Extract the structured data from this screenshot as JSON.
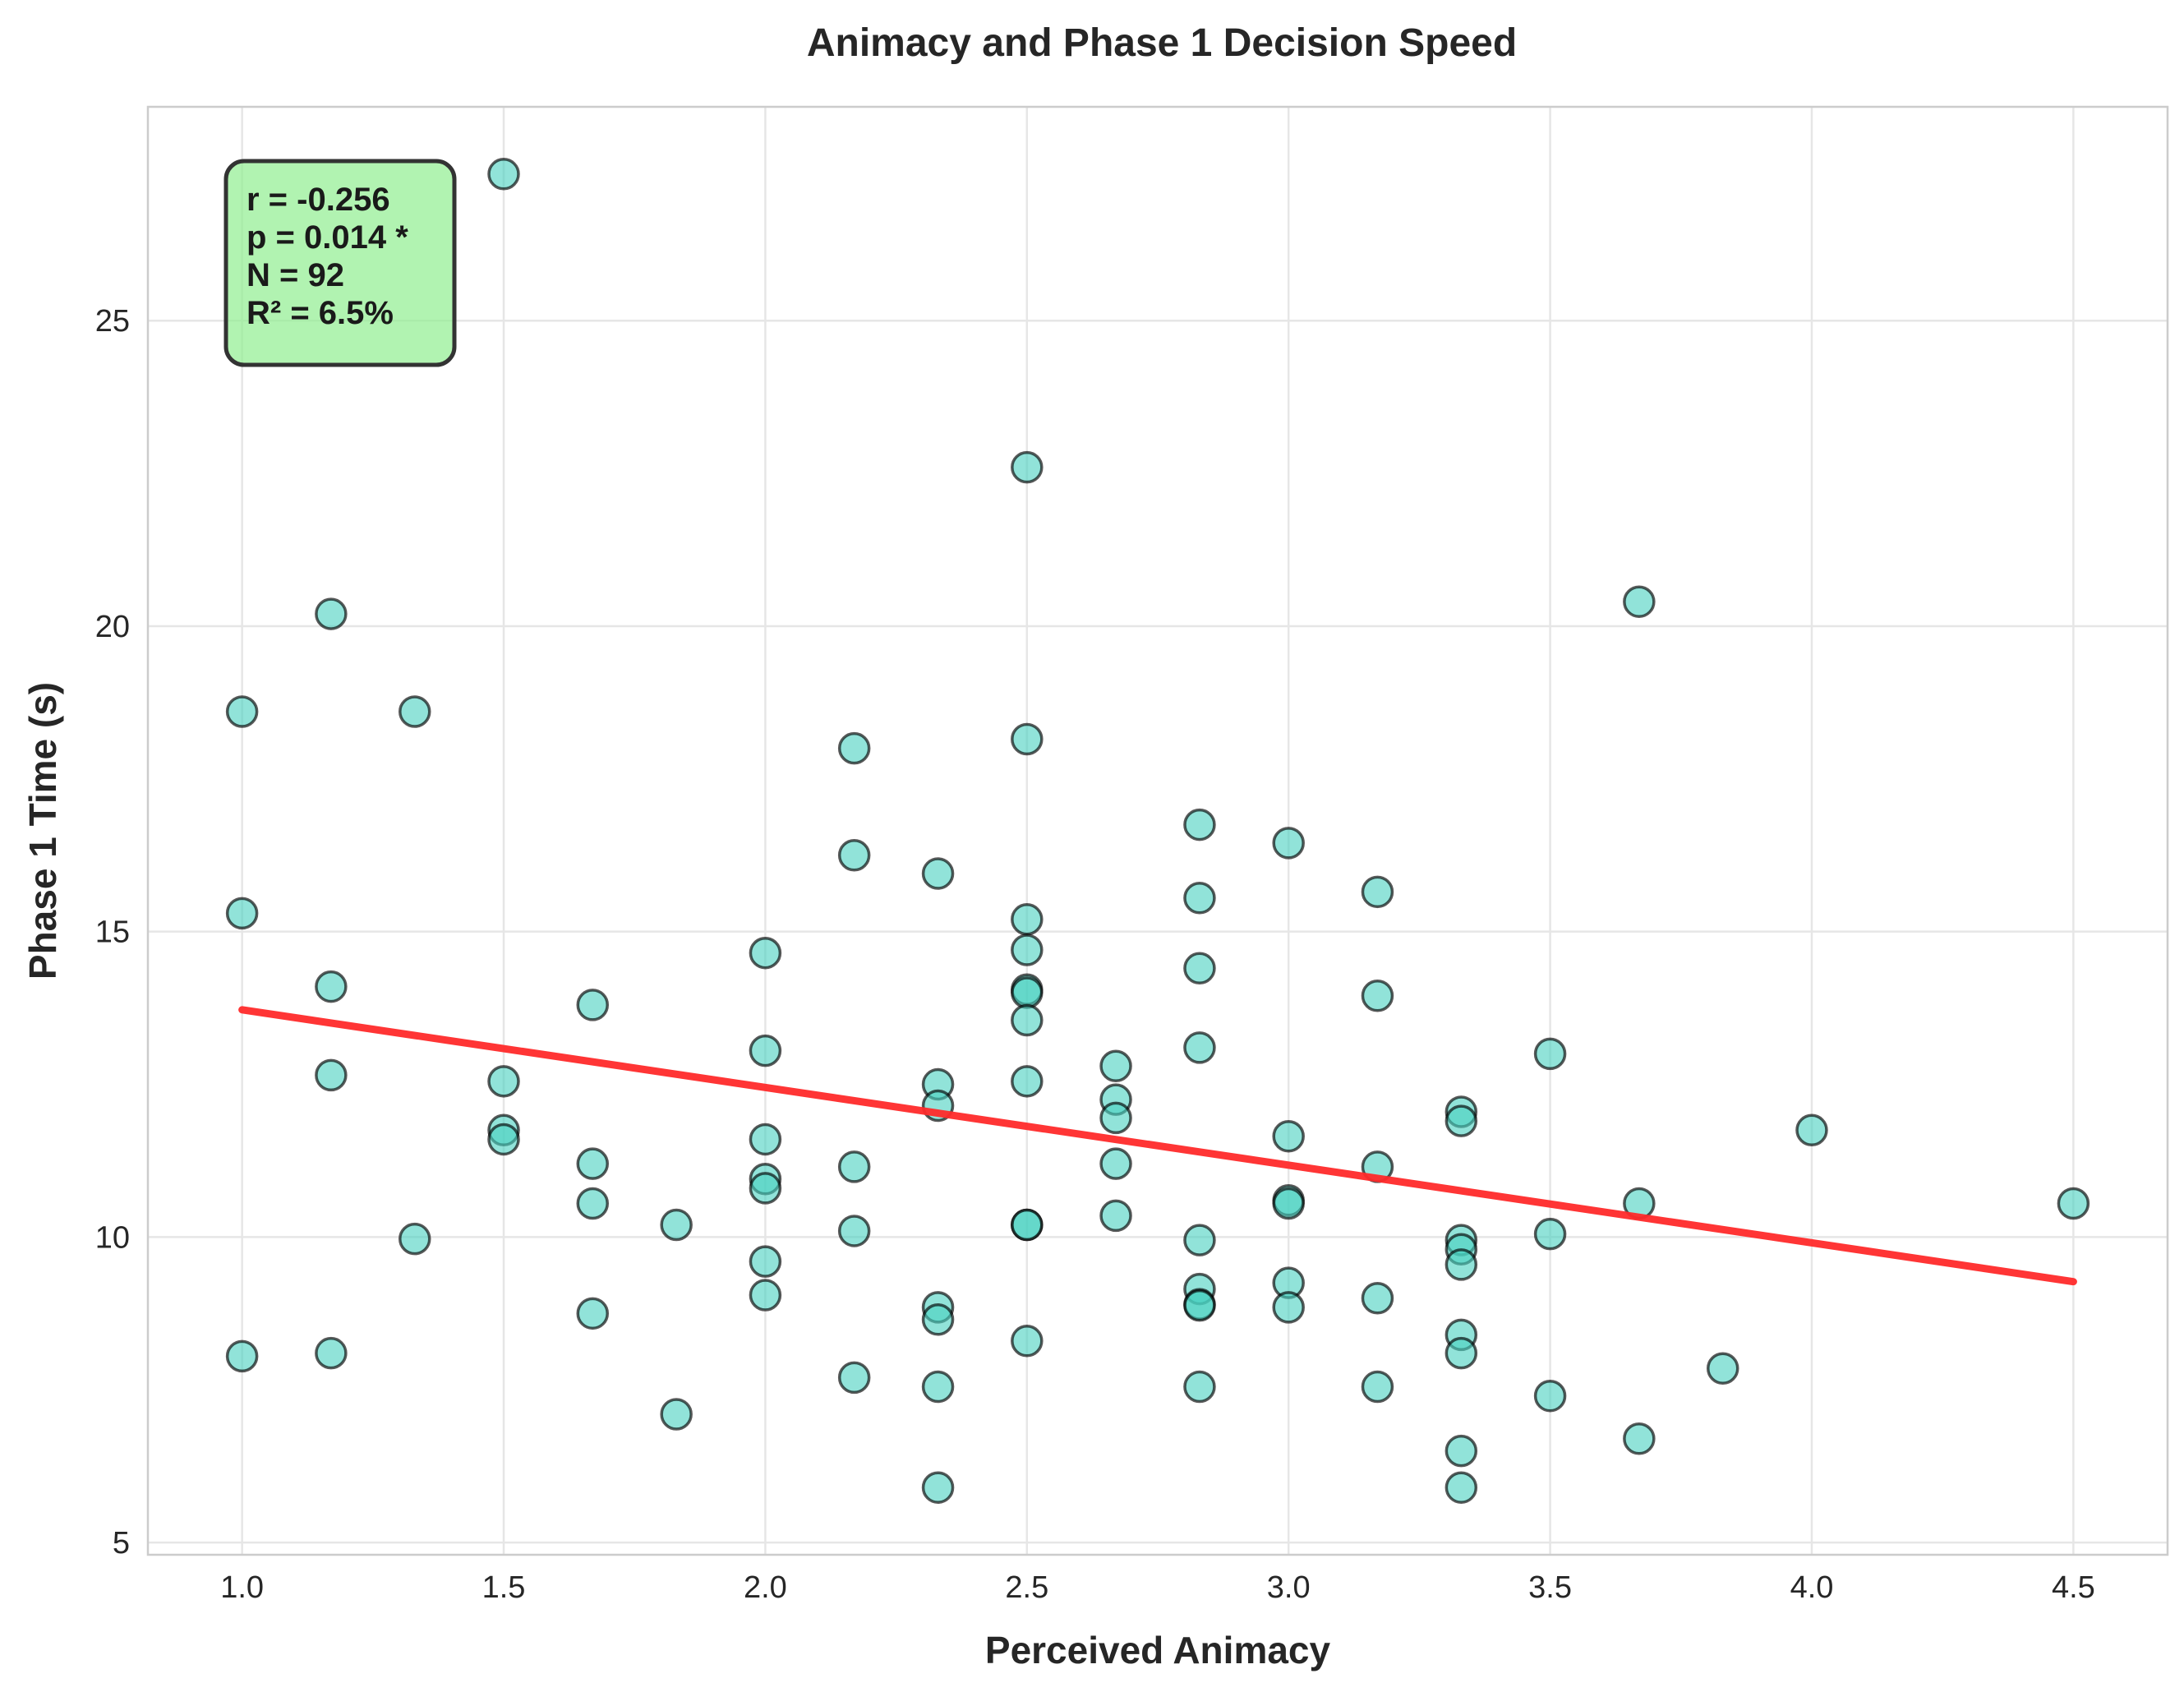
{
  "chart_data": {
    "type": "scatter",
    "title": "Animacy and Phase 1 Decision Speed",
    "xlabel": "Perceived Animacy",
    "ylabel": "Phase 1 Time (s)",
    "xlim": [
      0.82,
      4.68
    ],
    "ylim": [
      4.8,
      28.5
    ],
    "xticks": [
      "1.0",
      "1.5",
      "2.0",
      "2.5",
      "3.0",
      "3.5",
      "4.0",
      "4.5"
    ],
    "yticks": [
      "5",
      "10",
      "15",
      "20",
      "25"
    ],
    "grid": true,
    "point_color": "#48d1c0",
    "point_edge_color": "#000000",
    "line_color": "#ff2a2a",
    "stats_box_color": "#90ee90",
    "stats": [
      "r = -0.256",
      "p = 0.014 *",
      "N = 92",
      "R² = 6.5%"
    ],
    "regression": {
      "x": [
        1.0,
        4.5
      ],
      "y": [
        13.72,
        9.27
      ]
    },
    "points": [
      [
        1.0,
        18.6
      ],
      [
        1.0,
        15.3
      ],
      [
        1.0,
        8.05
      ],
      [
        1.17,
        20.2
      ],
      [
        1.17,
        14.1
      ],
      [
        1.17,
        12.65
      ],
      [
        1.17,
        8.1
      ],
      [
        1.33,
        18.6
      ],
      [
        1.33,
        9.97
      ],
      [
        1.5,
        27.4
      ],
      [
        1.5,
        12.55
      ],
      [
        1.5,
        11.75
      ],
      [
        1.5,
        11.6
      ],
      [
        1.67,
        13.8
      ],
      [
        1.67,
        11.2
      ],
      [
        1.67,
        10.55
      ],
      [
        1.67,
        8.75
      ],
      [
        1.83,
        10.2
      ],
      [
        1.83,
        7.1
      ],
      [
        2.0,
        14.65
      ],
      [
        2.0,
        13.05
      ],
      [
        2.0,
        11.6
      ],
      [
        2.0,
        10.95
      ],
      [
        2.0,
        10.8
      ],
      [
        2.0,
        9.6
      ],
      [
        2.0,
        9.05
      ],
      [
        2.17,
        18.0
      ],
      [
        2.17,
        16.25
      ],
      [
        2.17,
        11.15
      ],
      [
        2.17,
        10.1
      ],
      [
        2.17,
        7.7
      ],
      [
        2.33,
        15.95
      ],
      [
        2.33,
        12.5
      ],
      [
        2.33,
        12.15
      ],
      [
        2.33,
        8.85
      ],
      [
        2.33,
        8.65
      ],
      [
        2.33,
        7.55
      ],
      [
        2.33,
        5.9
      ],
      [
        2.5,
        22.6
      ],
      [
        2.5,
        18.15
      ],
      [
        2.5,
        15.2
      ],
      [
        2.5,
        14.7
      ],
      [
        2.5,
        14.05
      ],
      [
        2.5,
        14.0
      ],
      [
        2.5,
        13.55
      ],
      [
        2.5,
        12.55
      ],
      [
        2.5,
        10.2
      ],
      [
        2.5,
        10.2
      ],
      [
        2.5,
        8.3
      ],
      [
        2.67,
        12.8
      ],
      [
        2.67,
        12.25
      ],
      [
        2.67,
        11.95
      ],
      [
        2.67,
        11.2
      ],
      [
        2.67,
        10.35
      ],
      [
        2.83,
        16.75
      ],
      [
        2.83,
        15.55
      ],
      [
        2.83,
        14.4
      ],
      [
        2.83,
        13.1
      ],
      [
        2.83,
        9.95
      ],
      [
        2.83,
        9.15
      ],
      [
        2.83,
        8.9
      ],
      [
        2.83,
        8.88
      ],
      [
        2.83,
        7.55
      ],
      [
        3.0,
        16.45
      ],
      [
        3.0,
        11.65
      ],
      [
        3.0,
        10.6
      ],
      [
        3.0,
        10.55
      ],
      [
        3.0,
        9.25
      ],
      [
        3.0,
        8.85
      ],
      [
        3.17,
        15.65
      ],
      [
        3.17,
        13.95
      ],
      [
        3.17,
        11.15
      ],
      [
        3.17,
        9.0
      ],
      [
        3.17,
        7.55
      ],
      [
        3.33,
        12.05
      ],
      [
        3.33,
        11.9
      ],
      [
        3.33,
        9.95
      ],
      [
        3.33,
        9.8
      ],
      [
        3.33,
        9.55
      ],
      [
        3.33,
        8.4
      ],
      [
        3.33,
        8.1
      ],
      [
        3.33,
        6.5
      ],
      [
        3.33,
        5.9
      ],
      [
        3.5,
        13.0
      ],
      [
        3.5,
        10.05
      ],
      [
        3.5,
        7.4
      ],
      [
        3.67,
        20.4
      ],
      [
        3.67,
        10.55
      ],
      [
        3.67,
        6.7
      ],
      [
        3.83,
        7.85
      ],
      [
        4.0,
        11.75
      ],
      [
        4.5,
        10.55
      ]
    ]
  }
}
